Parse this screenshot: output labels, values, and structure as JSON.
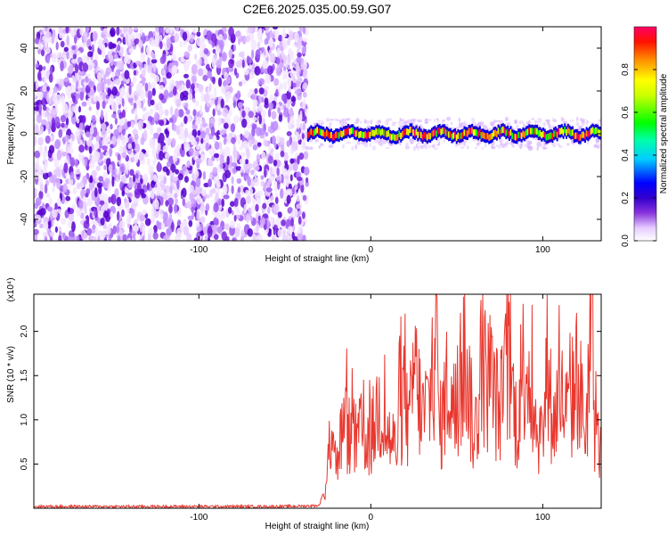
{
  "title": "C2E6.2025.035.00.59.G07",
  "chart_data": [
    {
      "type": "heatmap",
      "xlabel": "Height of straight line (km)",
      "ylabel": "Frequency (Hz)",
      "xlim": [
        -196,
        134
      ],
      "ylim": [
        -50,
        50
      ],
      "xticks": [
        -100,
        0,
        100
      ],
      "xtick_labels": [
        "-100",
        "0",
        "100"
      ],
      "yticks": [
        -40,
        -20,
        0,
        20,
        40
      ],
      "ytick_labels": [
        "-40",
        "-20",
        "0",
        "20",
        "40"
      ],
      "colorbar": {
        "label": "Normalized spectral amplitude",
        "range": [
          0,
          1
        ],
        "ticks": [
          0.0,
          0.2,
          0.4,
          0.6,
          0.8
        ],
        "tick_labels": [
          "0.0",
          "0.2",
          "0.4",
          "0.6",
          "0.8"
        ],
        "colors": [
          "#ffffff",
          "#cc99ff",
          "#6600cc",
          "#0000ff",
          "#00ffff",
          "#00ff00",
          "#ffff00",
          "#ff8800",
          "#ff0000",
          "#ff0066"
        ]
      },
      "noise_region": {
        "x": [
          -196,
          -37
        ],
        "y": [
          -50,
          50
        ],
        "amplitude_range": [
          0.0,
          0.25
        ]
      },
      "signal_band": {
        "x": [
          -37,
          134
        ],
        "center_frequency": 0,
        "half_width": 3,
        "peak_amplitude": 0.9
      }
    },
    {
      "type": "line",
      "xlabel": "Height of straight line (km)",
      "ylabel": "SNR (10 * v/v)",
      "y_multiplier": "(x10⁴)",
      "xlim": [
        -196,
        134
      ],
      "ylim": [
        0,
        2.42
      ],
      "xticks": [
        -100,
        0,
        100
      ],
      "xtick_labels": [
        "-100",
        "0",
        "100"
      ],
      "yticks": [
        0.5,
        1.0,
        1.5,
        2.0
      ],
      "ytick_labels": [
        "0.5",
        "1.0",
        "1.5",
        "2.0"
      ],
      "color": "#e8382f",
      "series": [
        {
          "x": [
            -196,
            -150,
            -100,
            -50,
            -30,
            -26,
            -22,
            -20,
            -18,
            -15,
            -10,
            -5,
            0,
            5,
            10,
            15,
            20,
            22,
            25,
            30,
            35,
            38,
            40,
            45,
            50,
            55,
            60,
            65,
            70,
            75,
            80,
            85,
            90,
            95,
            100,
            104,
            105,
            110,
            115,
            120,
            125,
            128,
            130,
            134
          ],
          "y": [
            0.02,
            0.02,
            0.02,
            0.02,
            0.03,
            0.3,
            1.33,
            0.5,
            0.9,
            1.08,
            0.85,
            1.0,
            0.9,
            1.4,
            0.95,
            0.8,
            1.7,
            0.9,
            1.9,
            1.2,
            1.5,
            2.38,
            1.0,
            1.7,
            1.1,
            2.1,
            0.9,
            1.8,
            1.6,
            1.3,
            1.9,
            1.1,
            2.15,
            1.2,
            0.9,
            2.38,
            1.0,
            1.5,
            1.2,
            1.8,
            1.0,
            2.38,
            1.1,
            0.7
          ]
        }
      ]
    }
  ]
}
